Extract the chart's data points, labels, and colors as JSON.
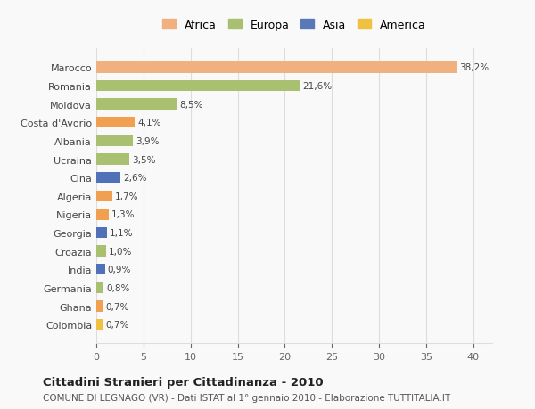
{
  "categories": [
    "Colombia",
    "Ghana",
    "Germania",
    "India",
    "Croazia",
    "Georgia",
    "Nigeria",
    "Algeria",
    "Cina",
    "Ucraina",
    "Albania",
    "Costa d'Avorio",
    "Moldova",
    "Romania",
    "Marocco"
  ],
  "values": [
    0.7,
    0.7,
    0.8,
    0.9,
    1.0,
    1.1,
    1.3,
    1.7,
    2.6,
    3.5,
    3.9,
    4.1,
    8.5,
    21.6,
    38.2
  ],
  "labels": [
    "0,7%",
    "0,7%",
    "0,8%",
    "0,9%",
    "1,0%",
    "1,1%",
    "1,3%",
    "1,7%",
    "2,6%",
    "3,5%",
    "3,9%",
    "4,1%",
    "8,5%",
    "21,6%",
    "38,2%"
  ],
  "colors": [
    "#f0c040",
    "#f0a050",
    "#a8c070",
    "#5070b8",
    "#a8c070",
    "#5070b8",
    "#f0a050",
    "#f0a050",
    "#5070b8",
    "#a8c070",
    "#a8c070",
    "#f0a050",
    "#a8c070",
    "#a8c070",
    "#f0b080"
  ],
  "continent": [
    "America",
    "Africa",
    "Europa",
    "Asia",
    "Europa",
    "Asia",
    "Africa",
    "Africa",
    "Asia",
    "Europa",
    "Europa",
    "Africa",
    "Europa",
    "Europa",
    "Africa"
  ],
  "legend_labels": [
    "Africa",
    "Europa",
    "Asia",
    "America"
  ],
  "legend_colors": [
    "#f0b080",
    "#a8c070",
    "#5878b8",
    "#f0c040"
  ],
  "title_bold": "Cittadini Stranieri per Cittadinanza - 2010",
  "subtitle": "COMUNE DI LEGNAGO (VR) - Dati ISTAT al 1° gennaio 2010 - Elaborazione TUTTITALIA.IT",
  "xlim": [
    0,
    42
  ],
  "xticks": [
    0,
    5,
    10,
    15,
    20,
    25,
    30,
    35,
    40
  ],
  "background_color": "#f9f9f9",
  "grid_color": "#dddddd",
  "bar_height": 0.6
}
